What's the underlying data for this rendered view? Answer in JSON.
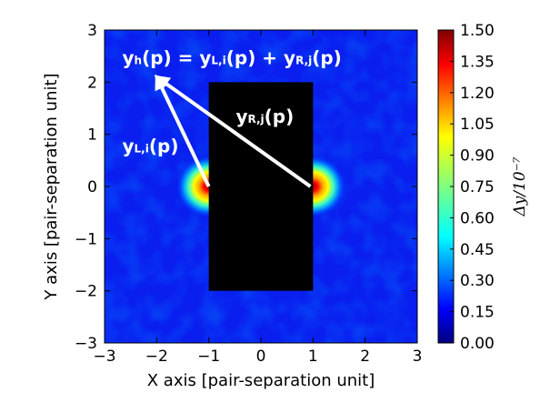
{
  "chart_data": {
    "type": "heatmap",
    "title": "",
    "xlabel": "X axis [pair-separation unit]",
    "ylabel": "Y axis [pair-separation unit]",
    "xlim": [
      -3,
      3
    ],
    "ylim": [
      -3,
      3
    ],
    "x_ticks": [
      "−3",
      "−2",
      "−1",
      "0",
      "1",
      "2",
      "3"
    ],
    "y_ticks": [
      "−3",
      "−2",
      "−1",
      "0",
      "1",
      "2",
      "3"
    ],
    "colorbar": {
      "label": "Δy/10⁻⁷",
      "min": 0.0,
      "max": 1.5,
      "ticks": [
        "0.00",
        "0.15",
        "0.30",
        "0.45",
        "0.60",
        "0.75",
        "0.90",
        "1.05",
        "1.20",
        "1.35",
        "1.50"
      ],
      "colormap": "jet"
    },
    "hotspots": [
      {
        "x": -1,
        "y": 0,
        "value": 1.5
      },
      {
        "x": 1,
        "y": 0,
        "value": 1.5
      }
    ],
    "background_level": 0.18,
    "masked_region": {
      "x0": -1,
      "x1": 1,
      "y0": -2,
      "y1": 2,
      "color": "#000000"
    },
    "annotations": {
      "top_eq": {
        "parts": [
          {
            "t": "y",
            "sub": false
          },
          {
            "t": "h",
            "sub": true
          },
          {
            "t": "(p) = y",
            "sub": false
          },
          {
            "t": "L,i",
            "sub": true
          },
          {
            "t": "(p) + y",
            "sub": false
          },
          {
            "t": "R,j",
            "sub": true
          },
          {
            "t": "(p)",
            "sub": false
          }
        ],
        "x": -2.66,
        "y": 2.35
      },
      "left_label": {
        "parts": [
          {
            "t": "y",
            "sub": false
          },
          {
            "t": "L,i",
            "sub": true
          },
          {
            "t": "(p)",
            "sub": false
          }
        ],
        "x": -2.66,
        "y": 0.65
      },
      "right_label": {
        "parts": [
          {
            "t": "y",
            "sub": false
          },
          {
            "t": "R,j",
            "sub": true
          },
          {
            "t": "(p)",
            "sub": false
          }
        ],
        "x": -0.48,
        "y": 1.22
      }
    },
    "arrows": [
      {
        "from": [
          -1,
          0
        ],
        "to": [
          -2.0,
          2.1
        ]
      },
      {
        "from": [
          0.95,
          0
        ],
        "to": [
          -2.0,
          2.1
        ]
      }
    ]
  }
}
